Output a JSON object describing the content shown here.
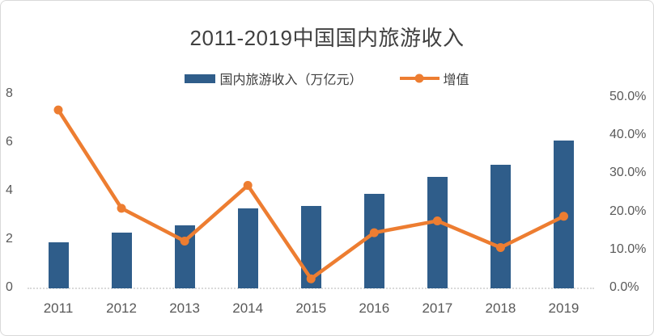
{
  "title": "2011-2019中国国内旅游收入",
  "legend": [
    {
      "label": "国内旅游收入（万亿元）",
      "type": "bar",
      "color": "#2F5D8A"
    },
    {
      "label": "增值",
      "type": "line",
      "color": "#ED7D31"
    }
  ],
  "colors": {
    "bar": "#2F5D8A",
    "line": "#ED7D31",
    "axis_text": "#595959",
    "title_text": "#404040",
    "axis_line": "#D9D9D9"
  },
  "chart_data": {
    "type": "bar",
    "subtype": "bar+line combo, dual axis",
    "title": "2011-2019中国国内旅游收入",
    "categories": [
      "2011",
      "2012",
      "2013",
      "2014",
      "2015",
      "2016",
      "2017",
      "2018",
      "2019"
    ],
    "series": [
      {
        "name": "国内旅游收入（万亿元）",
        "type": "bar",
        "axis": "left",
        "unit": "万亿元",
        "values": [
          1.9,
          2.3,
          2.6,
          3.3,
          3.4,
          3.9,
          4.6,
          5.1,
          6.1
        ]
      },
      {
        "name": "增值",
        "type": "line",
        "axis": "right",
        "unit": "%",
        "values": [
          46.8,
          21.0,
          12.4,
          27.0,
          2.5,
          14.6,
          17.7,
          10.7,
          18.9
        ]
      }
    ],
    "left_axis": {
      "ticks": [
        "0",
        "2",
        "4",
        "6",
        "8"
      ],
      "range": [
        0,
        8
      ]
    },
    "right_axis": {
      "ticks": [
        "0.0%",
        "10.0%",
        "20.0%",
        "30.0%",
        "40.0%",
        "50.0%"
      ],
      "range_pct": [
        0,
        50
      ]
    },
    "grid": false,
    "legend_position": "top"
  }
}
